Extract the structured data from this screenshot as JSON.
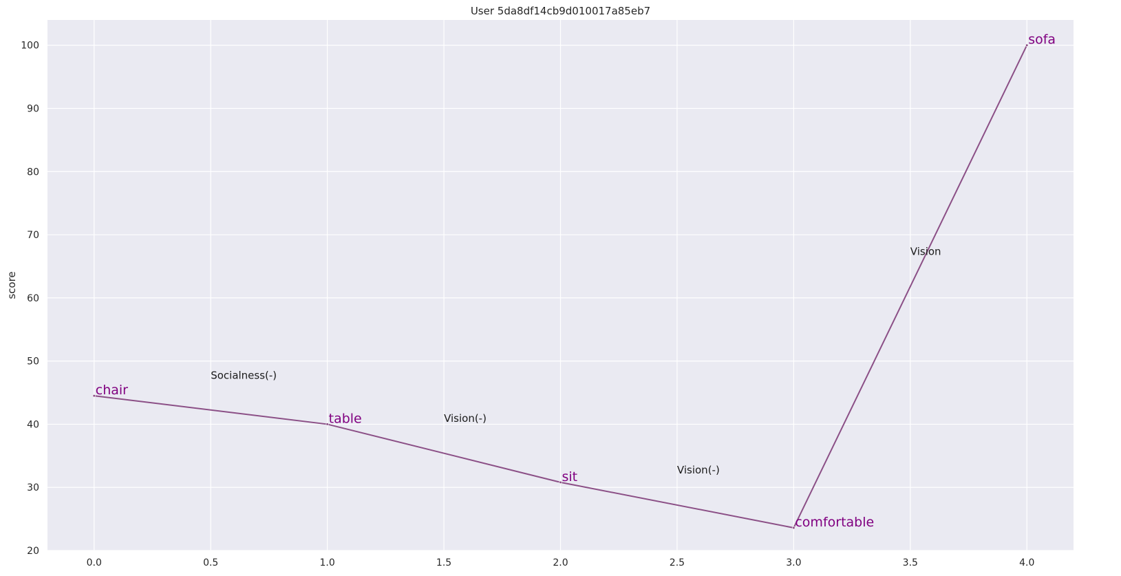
{
  "chart_data": {
    "type": "line",
    "title": "User 5da8df14cb9d010017a85eb7",
    "xlabel": "",
    "ylabel": "score",
    "xlim": [
      -0.2,
      4.2
    ],
    "ylim": [
      20,
      104
    ],
    "x_ticks": [
      "0.0",
      "0.5",
      "1.0",
      "1.5",
      "2.0",
      "2.5",
      "3.0",
      "3.5",
      "4.0"
    ],
    "x_tick_values": [
      0,
      0.5,
      1,
      1.5,
      2,
      2.5,
      3,
      3.5,
      4
    ],
    "y_ticks": [
      "20",
      "30",
      "40",
      "50",
      "60",
      "70",
      "80",
      "90",
      "100"
    ],
    "y_tick_values": [
      20,
      30,
      40,
      50,
      60,
      70,
      80,
      90,
      100
    ],
    "grid": true,
    "series": [
      {
        "x": [
          0,
          1,
          2,
          3,
          4
        ],
        "y": [
          44.5,
          40.0,
          30.8,
          23.6,
          100.0
        ],
        "labels": [
          "chair",
          "table",
          "sit",
          "comfortable",
          "sofa"
        ]
      }
    ],
    "annotations": [
      {
        "text": "Socialness(-)",
        "x": 0.5,
        "y": 47.2
      },
      {
        "text": "Vision(-)",
        "x": 1.5,
        "y": 40.4
      },
      {
        "text": "Vision(-)",
        "x": 2.5,
        "y": 32.2
      },
      {
        "text": "Vision",
        "x": 3.5,
        "y": 66.8
      }
    ],
    "colors": {
      "background": "#eaeaf2",
      "grid": "#ffffff",
      "line": "#8b4f86",
      "point_label": "#800080"
    }
  }
}
